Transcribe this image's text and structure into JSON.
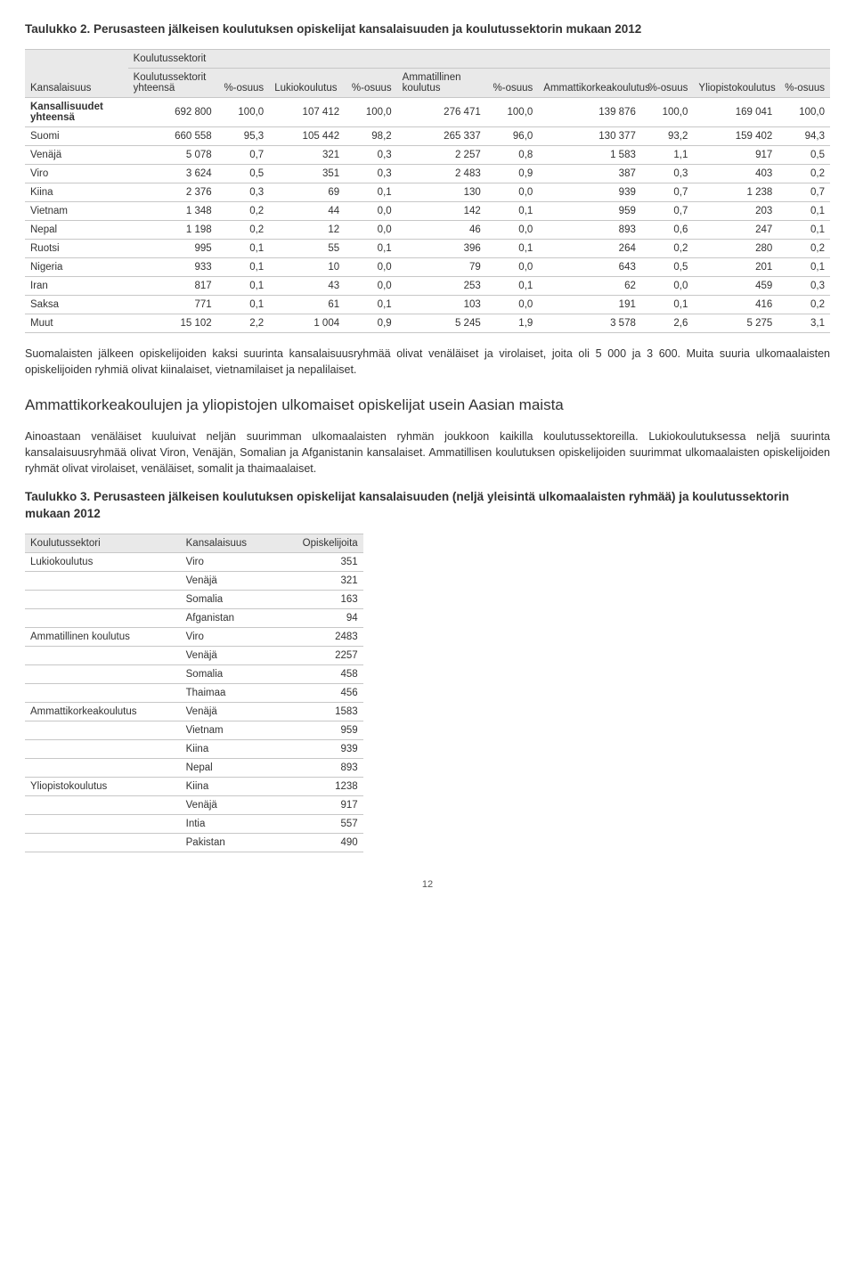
{
  "table2": {
    "title": "Taulukko 2. Perusasteen jälkeisen koulutuksen opiskelijat kansalaisuuden ja koulutussektorin mukaan 2012",
    "headers": {
      "h0": "Kansalaisuus",
      "h1": "Koulutussektorit",
      "sub": [
        "Koulutussektorit yhteensä",
        "%-osuus",
        "Lukiokoulutus",
        "%-osuus",
        "Ammatillinen koulutus",
        "%-osuus",
        "Ammattikorkeakoulutus",
        "%-osuus",
        "Yliopistokoulutus",
        "%-osuus"
      ]
    },
    "rows": [
      {
        "label": "Kansallisuudet yhteensä",
        "v": [
          "692 800",
          "100,0",
          "107 412",
          "100,0",
          "276 471",
          "100,0",
          "139 876",
          "100,0",
          "169 041",
          "100,0"
        ]
      },
      {
        "label": "Suomi",
        "v": [
          "660 558",
          "95,3",
          "105 442",
          "98,2",
          "265 337",
          "96,0",
          "130 377",
          "93,2",
          "159 402",
          "94,3"
        ]
      },
      {
        "label": "Venäjä",
        "v": [
          "5 078",
          "0,7",
          "321",
          "0,3",
          "2 257",
          "0,8",
          "1 583",
          "1,1",
          "917",
          "0,5"
        ]
      },
      {
        "label": "Viro",
        "v": [
          "3 624",
          "0,5",
          "351",
          "0,3",
          "2 483",
          "0,9",
          "387",
          "0,3",
          "403",
          "0,2"
        ]
      },
      {
        "label": "Kiina",
        "v": [
          "2 376",
          "0,3",
          "69",
          "0,1",
          "130",
          "0,0",
          "939",
          "0,7",
          "1 238",
          "0,7"
        ]
      },
      {
        "label": "Vietnam",
        "v": [
          "1 348",
          "0,2",
          "44",
          "0,0",
          "142",
          "0,1",
          "959",
          "0,7",
          "203",
          "0,1"
        ]
      },
      {
        "label": "Nepal",
        "v": [
          "1 198",
          "0,2",
          "12",
          "0,0",
          "46",
          "0,0",
          "893",
          "0,6",
          "247",
          "0,1"
        ]
      },
      {
        "label": "Ruotsi",
        "v": [
          "995",
          "0,1",
          "55",
          "0,1",
          "396",
          "0,1",
          "264",
          "0,2",
          "280",
          "0,2"
        ]
      },
      {
        "label": "Nigeria",
        "v": [
          "933",
          "0,1",
          "10",
          "0,0",
          "79",
          "0,0",
          "643",
          "0,5",
          "201",
          "0,1"
        ]
      },
      {
        "label": "Iran",
        "v": [
          "817",
          "0,1",
          "43",
          "0,0",
          "253",
          "0,1",
          "62",
          "0,0",
          "459",
          "0,3"
        ]
      },
      {
        "label": "Saksa",
        "v": [
          "771",
          "0,1",
          "61",
          "0,1",
          "103",
          "0,0",
          "191",
          "0,1",
          "416",
          "0,2"
        ]
      },
      {
        "label": "Muut",
        "v": [
          "15 102",
          "2,2",
          "1 004",
          "0,9",
          "5 245",
          "1,9",
          "3 578",
          "2,6",
          "5 275",
          "3,1"
        ]
      }
    ]
  },
  "para1": "Suomalaisten jälkeen opiskelijoiden kaksi suurinta kansalaisuusryhmää olivat venäläiset ja virolaiset, joita oli 5 000 ja 3 600. Muita suuria ulkomaalaisten opiskelijoiden ryhmiä olivat kiinalaiset, vietnamilaiset ja nepalilaiset.",
  "section_title": "Ammattikorkeakoulujen ja yliopistojen ulkomaiset opiskelijat usein Aasian maista",
  "para2": "Ainoastaan venäläiset kuuluivat neljän suurimman ulkomaalaisten ryhmän joukkoon kaikilla koulutussektoreilla. Lukiokoulutuksessa neljä suurinta kansalaisuusryhmää olivat Viron, Venäjän, Somalian ja Afganistanin kansalaiset. Ammatillisen koulutuksen opiskelijoiden suurimmat ulkomaalaisten opiskelijoiden ryhmät olivat virolaiset, venäläiset, somalit ja thaimaalaiset.",
  "table3": {
    "title": "Taulukko 3. Perusasteen jälkeisen koulutuksen opiskelijat kansalaisuuden (neljä yleisintä ulkomaalaisten ryhmää) ja koulutussektorin mukaan 2012",
    "headers": [
      "Koulutussektori",
      "Kansalaisuus",
      "Opiskelijoita"
    ],
    "rows": [
      {
        "sector": "Lukiokoulutus",
        "nat": "Viro",
        "val": "351"
      },
      {
        "sector": "",
        "nat": "Venäjä",
        "val": "321"
      },
      {
        "sector": "",
        "nat": "Somalia",
        "val": "163"
      },
      {
        "sector": "",
        "nat": "Afganistan",
        "val": "94"
      },
      {
        "sector": "Ammatillinen koulutus",
        "nat": "Viro",
        "val": "2483"
      },
      {
        "sector": "",
        "nat": "Venäjä",
        "val": "2257"
      },
      {
        "sector": "",
        "nat": "Somalia",
        "val": "458"
      },
      {
        "sector": "",
        "nat": "Thaimaa",
        "val": "456"
      },
      {
        "sector": "Ammattikorkeakoulutus",
        "nat": "Venäjä",
        "val": "1583"
      },
      {
        "sector": "",
        "nat": "Vietnam",
        "val": "959"
      },
      {
        "sector": "",
        "nat": "Kiina",
        "val": "939"
      },
      {
        "sector": "",
        "nat": "Nepal",
        "val": "893"
      },
      {
        "sector": "Yliopistokoulutus",
        "nat": "Kiina",
        "val": "1238"
      },
      {
        "sector": "",
        "nat": "Venäjä",
        "val": "917"
      },
      {
        "sector": "",
        "nat": "Intia",
        "val": "557"
      },
      {
        "sector": "",
        "nat": "Pakistan",
        "val": "490"
      }
    ]
  },
  "page_number": "12"
}
